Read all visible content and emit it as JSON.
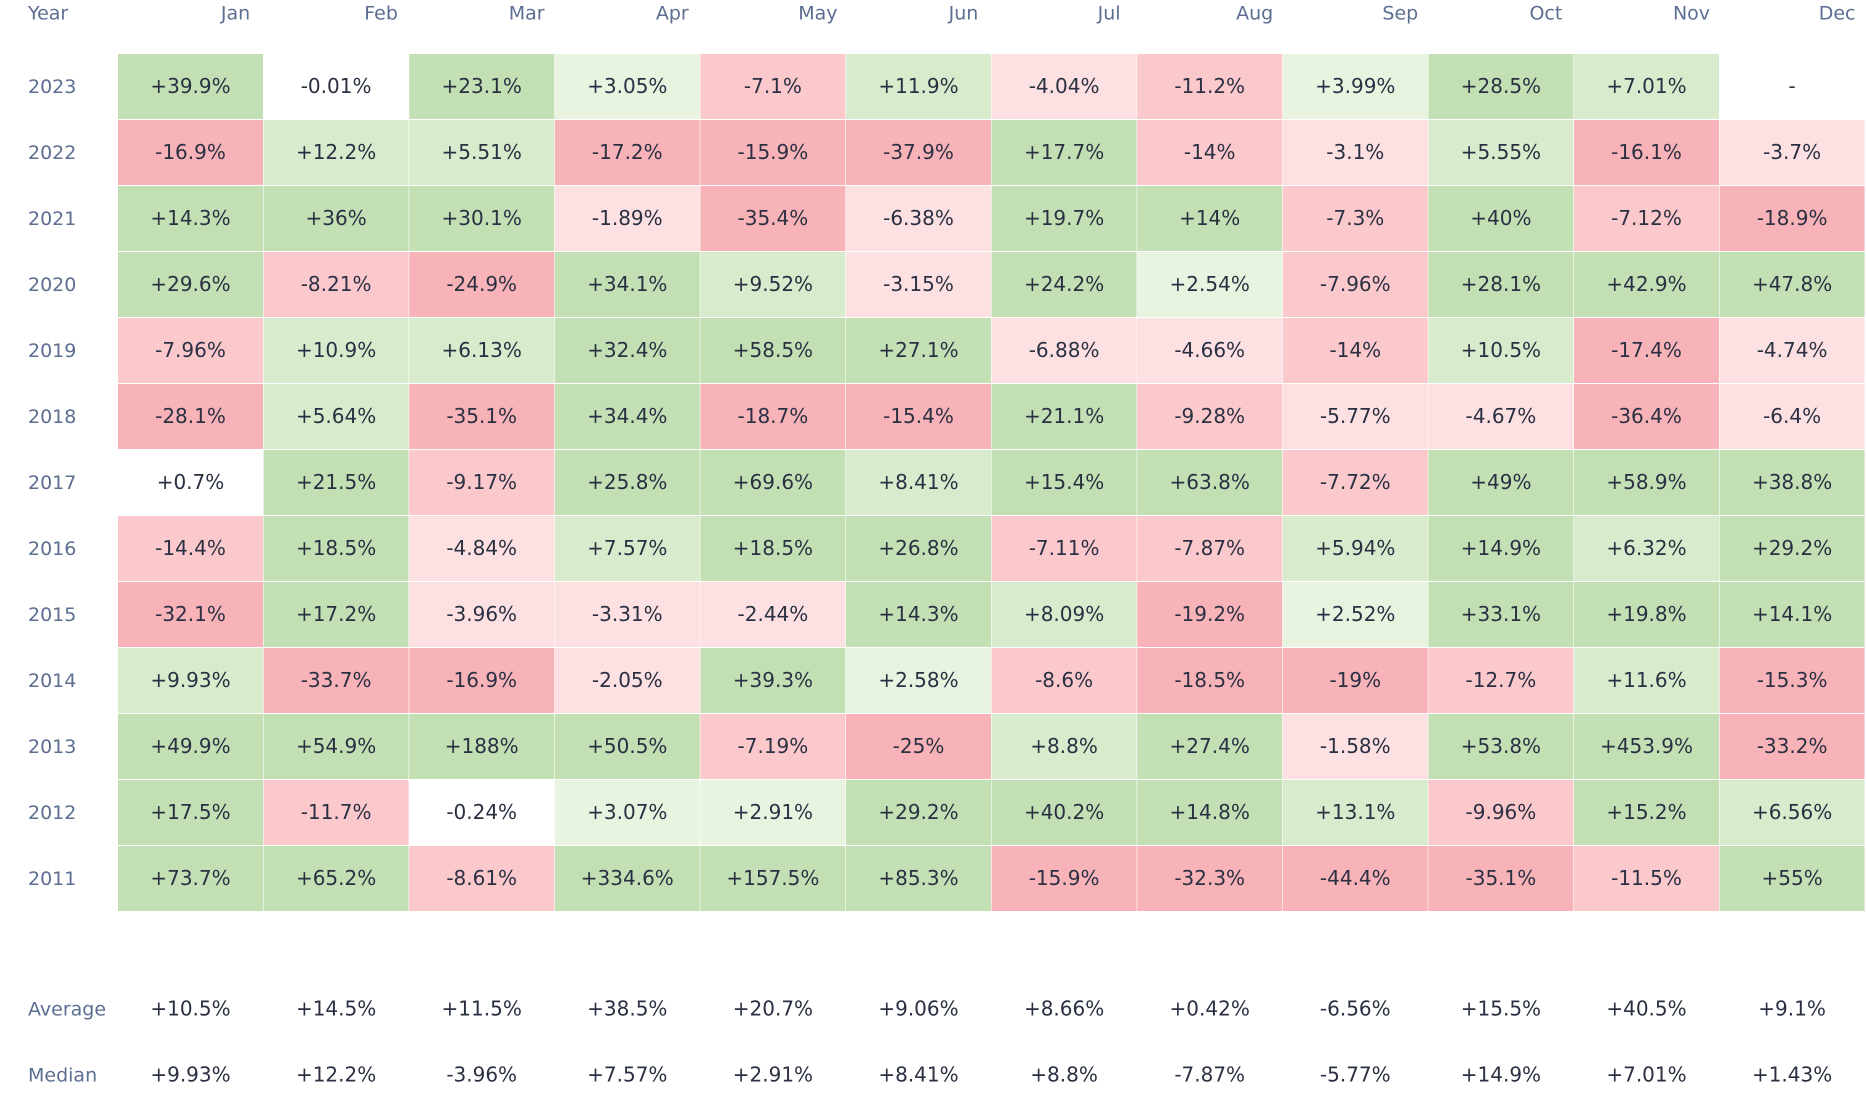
{
  "chart_data": {
    "type": "heatmap",
    "corner_label": "Year",
    "columns": [
      "Jan",
      "Feb",
      "Mar",
      "Apr",
      "May",
      "Jun",
      "Jul",
      "Aug",
      "Sep",
      "Oct",
      "Nov",
      "Dec"
    ],
    "rows": [
      {
        "year": "2023",
        "values": [
          "+39.9%",
          "-0.01%",
          "+23.1%",
          "+3.05%",
          "-7.1%",
          "+11.9%",
          "-4.04%",
          "-11.2%",
          "+3.99%",
          "+28.5%",
          "+7.01%",
          "-"
        ]
      },
      {
        "year": "2022",
        "values": [
          "-16.9%",
          "+12.2%",
          "+5.51%",
          "-17.2%",
          "-15.9%",
          "-37.9%",
          "+17.7%",
          "-14%",
          "-3.1%",
          "+5.55%",
          "-16.1%",
          "-3.7%"
        ]
      },
      {
        "year": "2021",
        "values": [
          "+14.3%",
          "+36%",
          "+30.1%",
          "-1.89%",
          "-35.4%",
          "-6.38%",
          "+19.7%",
          "+14%",
          "-7.3%",
          "+40%",
          "-7.12%",
          "-18.9%"
        ]
      },
      {
        "year": "2020",
        "values": [
          "+29.6%",
          "-8.21%",
          "-24.9%",
          "+34.1%",
          "+9.52%",
          "-3.15%",
          "+24.2%",
          "+2.54%",
          "-7.96%",
          "+28.1%",
          "+42.9%",
          "+47.8%"
        ]
      },
      {
        "year": "2019",
        "values": [
          "-7.96%",
          "+10.9%",
          "+6.13%",
          "+32.4%",
          "+58.5%",
          "+27.1%",
          "-6.88%",
          "-4.66%",
          "-14%",
          "+10.5%",
          "-17.4%",
          "-4.74%"
        ]
      },
      {
        "year": "2018",
        "values": [
          "-28.1%",
          "+5.64%",
          "-35.1%",
          "+34.4%",
          "-18.7%",
          "-15.4%",
          "+21.1%",
          "-9.28%",
          "-5.77%",
          "-4.67%",
          "-36.4%",
          "-6.4%"
        ]
      },
      {
        "year": "2017",
        "values": [
          "+0.7%",
          "+21.5%",
          "-9.17%",
          "+25.8%",
          "+69.6%",
          "+8.41%",
          "+15.4%",
          "+63.8%",
          "-7.72%",
          "+49%",
          "+58.9%",
          "+38.8%"
        ]
      },
      {
        "year": "2016",
        "values": [
          "-14.4%",
          "+18.5%",
          "-4.84%",
          "+7.57%",
          "+18.5%",
          "+26.8%",
          "-7.11%",
          "-7.87%",
          "+5.94%",
          "+14.9%",
          "+6.32%",
          "+29.2%"
        ]
      },
      {
        "year": "2015",
        "values": [
          "-32.1%",
          "+17.2%",
          "-3.96%",
          "-3.31%",
          "-2.44%",
          "+14.3%",
          "+8.09%",
          "-19.2%",
          "+2.52%",
          "+33.1%",
          "+19.8%",
          "+14.1%"
        ]
      },
      {
        "year": "2014",
        "values": [
          "+9.93%",
          "-33.7%",
          "-16.9%",
          "-2.05%",
          "+39.3%",
          "+2.58%",
          "-8.6%",
          "-18.5%",
          "-19%",
          "-12.7%",
          "+11.6%",
          "-15.3%"
        ]
      },
      {
        "year": "2013",
        "values": [
          "+49.9%",
          "+54.9%",
          "+188%",
          "+50.5%",
          "-7.19%",
          "-25%",
          "+8.8%",
          "+27.4%",
          "-1.58%",
          "+53.8%",
          "+453.9%",
          "-33.2%"
        ]
      },
      {
        "year": "2012",
        "values": [
          "+17.5%",
          "-11.7%",
          "-0.24%",
          "+3.07%",
          "+2.91%",
          "+29.2%",
          "+40.2%",
          "+14.8%",
          "+13.1%",
          "-9.96%",
          "+15.2%",
          "+6.56%"
        ]
      },
      {
        "year": "2011",
        "values": [
          "+73.7%",
          "+65.2%",
          "-8.61%",
          "+334.6%",
          "+157.5%",
          "+85.3%",
          "-15.9%",
          "-32.3%",
          "-44.4%",
          "-35.1%",
          "-11.5%",
          "+55%"
        ]
      }
    ],
    "summary_rows": [
      {
        "label": "Average",
        "values": [
          "+10.5%",
          "+14.5%",
          "+11.5%",
          "+38.5%",
          "+20.7%",
          "+9.06%",
          "+8.66%",
          "+0.42%",
          "-6.56%",
          "+15.5%",
          "+40.5%",
          "+9.1%"
        ]
      },
      {
        "label": "Median",
        "values": [
          "+9.93%",
          "+12.2%",
          "-3.96%",
          "+7.57%",
          "+2.91%",
          "+8.41%",
          "+8.8%",
          "-7.87%",
          "-5.77%",
          "+14.9%",
          "+7.01%",
          "+1.43%"
        ]
      }
    ],
    "colors": {
      "green_strong": "#c3e0b5",
      "green_mid": "#d8ebcc",
      "green_light": "#e8f3e0",
      "red_strong": "#f8b3b8",
      "red_mid": "#fbc8cc",
      "red_light": "#fde0e2",
      "neutral": "#ffffff",
      "label_text": "#5c6e91",
      "cell_text": "#2a3042"
    }
  }
}
